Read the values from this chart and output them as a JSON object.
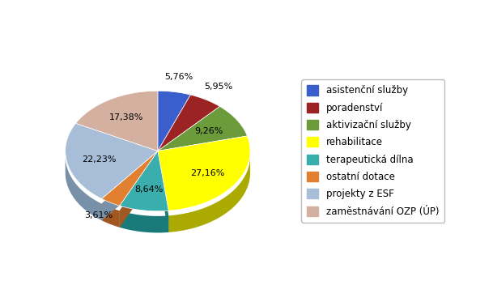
{
  "labels": [
    "asistenční služby",
    "poradenství",
    "aktivizační služby",
    "rehabilitace",
    "terapeutická dílna",
    "ostatní dotace",
    "projekty z ESF",
    "zaměstnávání OZP (ÚP)"
  ],
  "values": [
    5.76,
    5.95,
    9.26,
    27.16,
    8.64,
    3.61,
    22.23,
    17.38
  ],
  "pct_labels": [
    "5,76%",
    "5,95%",
    "9,26%",
    "27,16%",
    "8,64%",
    "3,61%",
    "22,23%",
    "17,38%"
  ],
  "colors_top": [
    "#3A5FCD",
    "#9B2323",
    "#6B9B3A",
    "#FFFF00",
    "#3AADAD",
    "#E08030",
    "#A8BED8",
    "#D4B0A0"
  ],
  "colors_side": [
    "#253D80",
    "#6B1515",
    "#4A6D28",
    "#AAAA00",
    "#1A7A7A",
    "#A05820",
    "#7890A8",
    "#A08878"
  ],
  "startangle": 90,
  "depth": 0.15,
  "background_color": "#FFFFFF",
  "legend_fontsize": 8.5,
  "pct_fontsize": 8
}
